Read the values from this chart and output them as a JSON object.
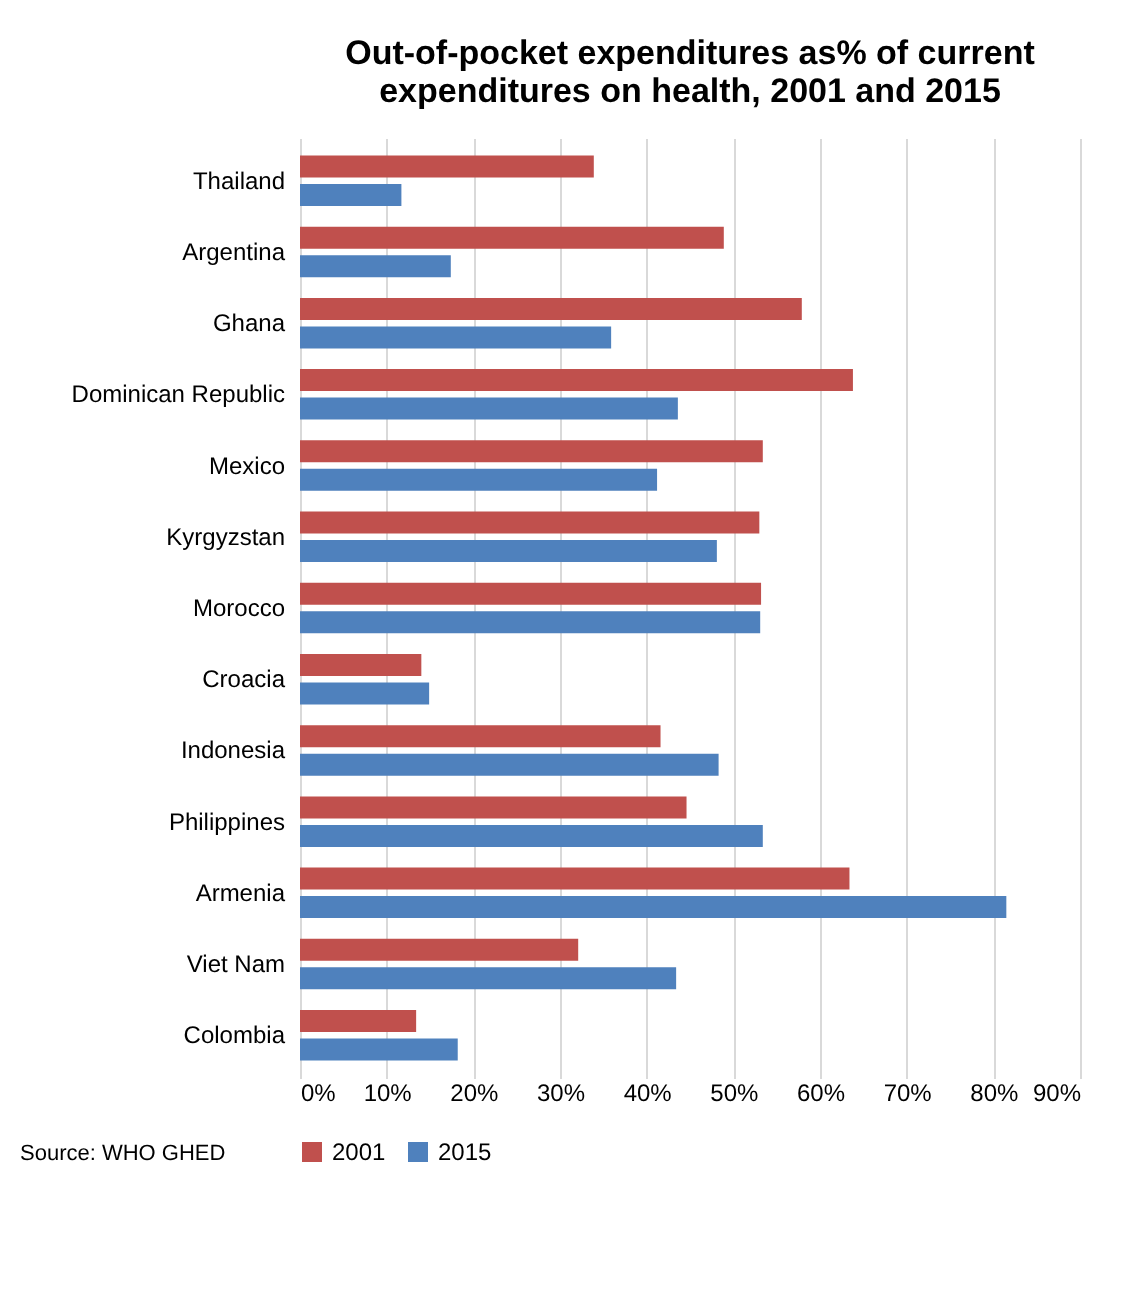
{
  "chart_data": {
    "type": "bar",
    "orientation": "horizontal",
    "title": [
      "Out-of-pocket expenditures as% of current",
      "expenditures on health, 2001 and 2015"
    ],
    "categories": [
      "Thailand",
      "Argentina",
      "Ghana",
      "Dominican Republic",
      "Mexico",
      "Kyrgyzstan",
      "Morocco",
      "Croacia",
      "Indonesia",
      "Philippines",
      "Armenia",
      "Viet Nam",
      "Colombia"
    ],
    "series": [
      {
        "name": "2001",
        "color": "#c0504d",
        "values": [
          33.9,
          48.9,
          57.9,
          63.8,
          53.4,
          53.0,
          53.2,
          14.0,
          41.6,
          44.6,
          63.4,
          32.1,
          13.4
        ]
      },
      {
        "name": "2015",
        "color": "#4f81bd",
        "values": [
          11.7,
          17.4,
          35.9,
          43.6,
          41.2,
          48.1,
          53.1,
          14.9,
          48.3,
          53.4,
          81.5,
          43.4,
          18.2
        ]
      }
    ],
    "xlim": [
      0,
      90
    ],
    "xticks": [
      {
        "value": 0,
        "label": "0%"
      },
      {
        "value": 10,
        "label": "10%"
      },
      {
        "value": 20,
        "label": "20%"
      },
      {
        "value": 30,
        "label": "30%"
      },
      {
        "value": 40,
        "label": "40%"
      },
      {
        "value": 50,
        "label": "50%"
      },
      {
        "value": 60,
        "label": "60%"
      },
      {
        "value": 70,
        "label": "70%"
      },
      {
        "value": 80,
        "label": "80%"
      },
      {
        "value": 90,
        "label": "90%"
      }
    ],
    "grid": "x",
    "legend": "bottom",
    "annotations": [
      "Source: WHO GHED"
    ]
  }
}
